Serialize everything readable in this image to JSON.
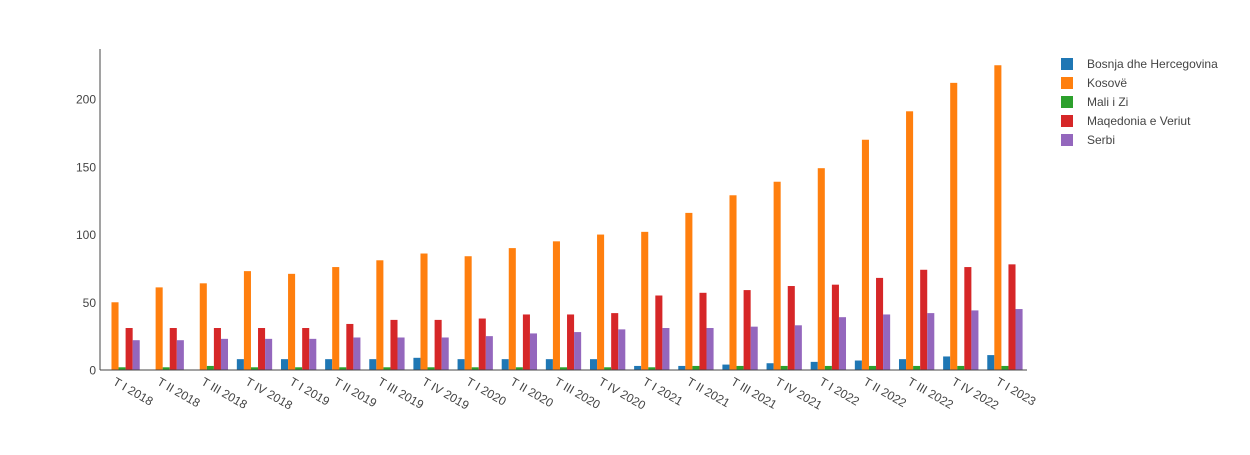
{
  "chart_data": {
    "type": "bar",
    "title": "",
    "xlabel": "",
    "ylabel": "",
    "ylim": [
      0,
      237
    ],
    "yticks": [
      0,
      50,
      100,
      150,
      200
    ],
    "legend_position": "top-right",
    "grid": false,
    "categories": [
      "T I 2018",
      "T II 2018",
      "T III 2018",
      "T IV 2018",
      "T I 2019",
      "T II 2019",
      "T III 2019",
      "T IV 2019",
      "T I 2020",
      "T II 2020",
      "T III 2020",
      "T IV 2020",
      "T I 2021",
      "T II 2021",
      "T III 2021",
      "T IV 2021",
      "T I 2022",
      "T II 2022",
      "T III 2022",
      "T IV 2022",
      "T I 2023"
    ],
    "series": [
      {
        "name": "Bosnja dhe Hercegovina",
        "color": "#1f77b4",
        "values": [
          0,
          0,
          0,
          8,
          8,
          8,
          8,
          9,
          8,
          8,
          8,
          8,
          3,
          3,
          4,
          5,
          6,
          7,
          8,
          10,
          11
        ]
      },
      {
        "name": "Kosovë",
        "color": "#ff7f0e",
        "values": [
          50,
          61,
          64,
          73,
          71,
          76,
          81,
          86,
          84,
          90,
          95,
          100,
          102,
          116,
          129,
          139,
          149,
          170,
          191,
          212,
          225
        ]
      },
      {
        "name": "Mali i Zi",
        "color": "#2ca02c",
        "values": [
          2,
          2,
          3,
          2,
          2,
          2,
          2,
          2,
          2,
          2,
          2,
          2,
          2,
          3,
          3,
          3,
          3,
          3,
          3,
          3,
          3
        ]
      },
      {
        "name": "Maqedonia e Veriut",
        "color": "#d62728",
        "values": [
          31,
          31,
          31,
          31,
          31,
          34,
          37,
          37,
          38,
          41,
          41,
          42,
          55,
          57,
          59,
          62,
          63,
          68,
          74,
          76,
          78
        ]
      },
      {
        "name": "Serbi",
        "color": "#9467bd",
        "values": [
          22,
          22,
          23,
          23,
          23,
          24,
          24,
          24,
          25,
          27,
          28,
          30,
          31,
          31,
          32,
          33,
          39,
          41,
          42,
          44,
          45
        ]
      }
    ]
  }
}
